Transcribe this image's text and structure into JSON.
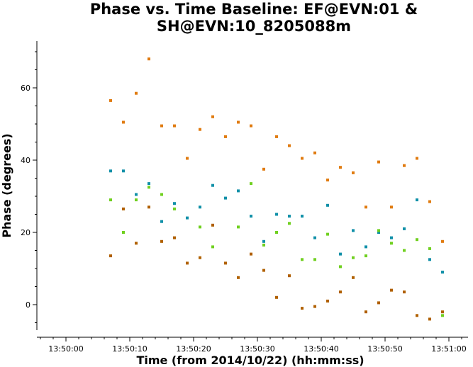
{
  "chart_data": {
    "type": "scatter",
    "title_line1": "Phase vs. Time Baseline: EF@EVN:01 &",
    "title_line2": "SH@EVN:10_8205088m",
    "xlabel": "Time (from 2014/10/22) (hh:mm:ss)",
    "ylabel": "Phase (degrees)",
    "xlim": [
      -3,
      65
    ],
    "ylim": [
      -7,
      73
    ],
    "x_unit": "seconds after 13:50:00",
    "x_ticks": [
      {
        "value": 0,
        "label": "13:50:00"
      },
      {
        "value": 10,
        "label": "13:50:10"
      },
      {
        "value": 20,
        "label": "13:50:20"
      },
      {
        "value": 30,
        "label": "13:50:30"
      },
      {
        "value": 40,
        "label": "13:50:40"
      },
      {
        "value": 50,
        "label": "13:50:50"
      },
      {
        "value": 60,
        "label": "13:51:00"
      }
    ],
    "y_ticks": [
      0,
      20,
      40,
      60
    ],
    "grid": false,
    "series": [
      {
        "color": "#e07b10",
        "points": [
          [
            7,
            56.5
          ],
          [
            9,
            50.5
          ],
          [
            11,
            58.5
          ],
          [
            13,
            68
          ],
          [
            15,
            49.5
          ],
          [
            17,
            49.5
          ],
          [
            19,
            40.5
          ],
          [
            21,
            48.5
          ],
          [
            23,
            52
          ],
          [
            25,
            46.5
          ],
          [
            27,
            50.5
          ],
          [
            29,
            49.5
          ],
          [
            31,
            37.5
          ],
          [
            33,
            46.5
          ],
          [
            35,
            44
          ],
          [
            37,
            40.5
          ],
          [
            39,
            42
          ],
          [
            41,
            34.5
          ],
          [
            43,
            38
          ],
          [
            45,
            36.5
          ],
          [
            47,
            27
          ],
          [
            49,
            39.5
          ],
          [
            51,
            27
          ],
          [
            53,
            38.5
          ],
          [
            55,
            40.5
          ],
          [
            57,
            28.5
          ],
          [
            59,
            17.5
          ]
        ]
      },
      {
        "color": "#1090a8",
        "points": [
          [
            7,
            37
          ],
          [
            9,
            37
          ],
          [
            11,
            30.5
          ],
          [
            13,
            33.5
          ],
          [
            15,
            23
          ],
          [
            17,
            28
          ],
          [
            19,
            24
          ],
          [
            21,
            27
          ],
          [
            23,
            33
          ],
          [
            25,
            29.5
          ],
          [
            27,
            31.5
          ],
          [
            29,
            24.5
          ],
          [
            31,
            17.5
          ],
          [
            33,
            25
          ],
          [
            35,
            24.5
          ],
          [
            37,
            24.5
          ],
          [
            39,
            18.5
          ],
          [
            41,
            27.5
          ],
          [
            43,
            14
          ],
          [
            45,
            20.5
          ],
          [
            47,
            16
          ],
          [
            49,
            20
          ],
          [
            51,
            18.5
          ],
          [
            53,
            21
          ],
          [
            55,
            29
          ],
          [
            57,
            12.5
          ],
          [
            59,
            9
          ]
        ]
      },
      {
        "color": "#70d020",
        "points": [
          [
            7,
            29
          ],
          [
            9,
            20
          ],
          [
            11,
            29
          ],
          [
            13,
            32.5
          ],
          [
            15,
            30.5
          ],
          [
            17,
            26.5
          ],
          [
            21,
            21.5
          ],
          [
            23,
            16
          ],
          [
            27,
            21.5
          ],
          [
            29,
            33.5
          ],
          [
            31,
            16.5
          ],
          [
            33,
            20
          ],
          [
            35,
            22.5
          ],
          [
            37,
            12.5
          ],
          [
            39,
            12.5
          ],
          [
            41,
            19.5
          ],
          [
            43,
            10.5
          ],
          [
            45,
            13
          ],
          [
            47,
            13.5
          ],
          [
            49,
            20.5
          ],
          [
            51,
            17
          ],
          [
            53,
            15
          ],
          [
            55,
            18
          ],
          [
            57,
            15.5
          ],
          [
            59,
            -3
          ]
        ]
      },
      {
        "color": "#b06000",
        "points": [
          [
            7,
            13.5
          ],
          [
            9,
            26.5
          ],
          [
            11,
            17
          ],
          [
            13,
            27
          ],
          [
            15,
            17.5
          ],
          [
            17,
            18.5
          ],
          [
            19,
            11.5
          ],
          [
            21,
            13
          ],
          [
            23,
            22
          ],
          [
            25,
            11.5
          ],
          [
            27,
            7.5
          ],
          [
            29,
            14
          ],
          [
            31,
            9.5
          ],
          [
            33,
            2
          ],
          [
            35,
            8
          ],
          [
            37,
            -1
          ],
          [
            39,
            -0.5
          ],
          [
            41,
            1
          ],
          [
            43,
            3.5
          ],
          [
            45,
            7.5
          ],
          [
            47,
            -2
          ],
          [
            49,
            0.5
          ],
          [
            51,
            4
          ],
          [
            53,
            3.5
          ],
          [
            55,
            -3
          ],
          [
            57,
            -4
          ],
          [
            59,
            -2
          ]
        ]
      }
    ]
  }
}
